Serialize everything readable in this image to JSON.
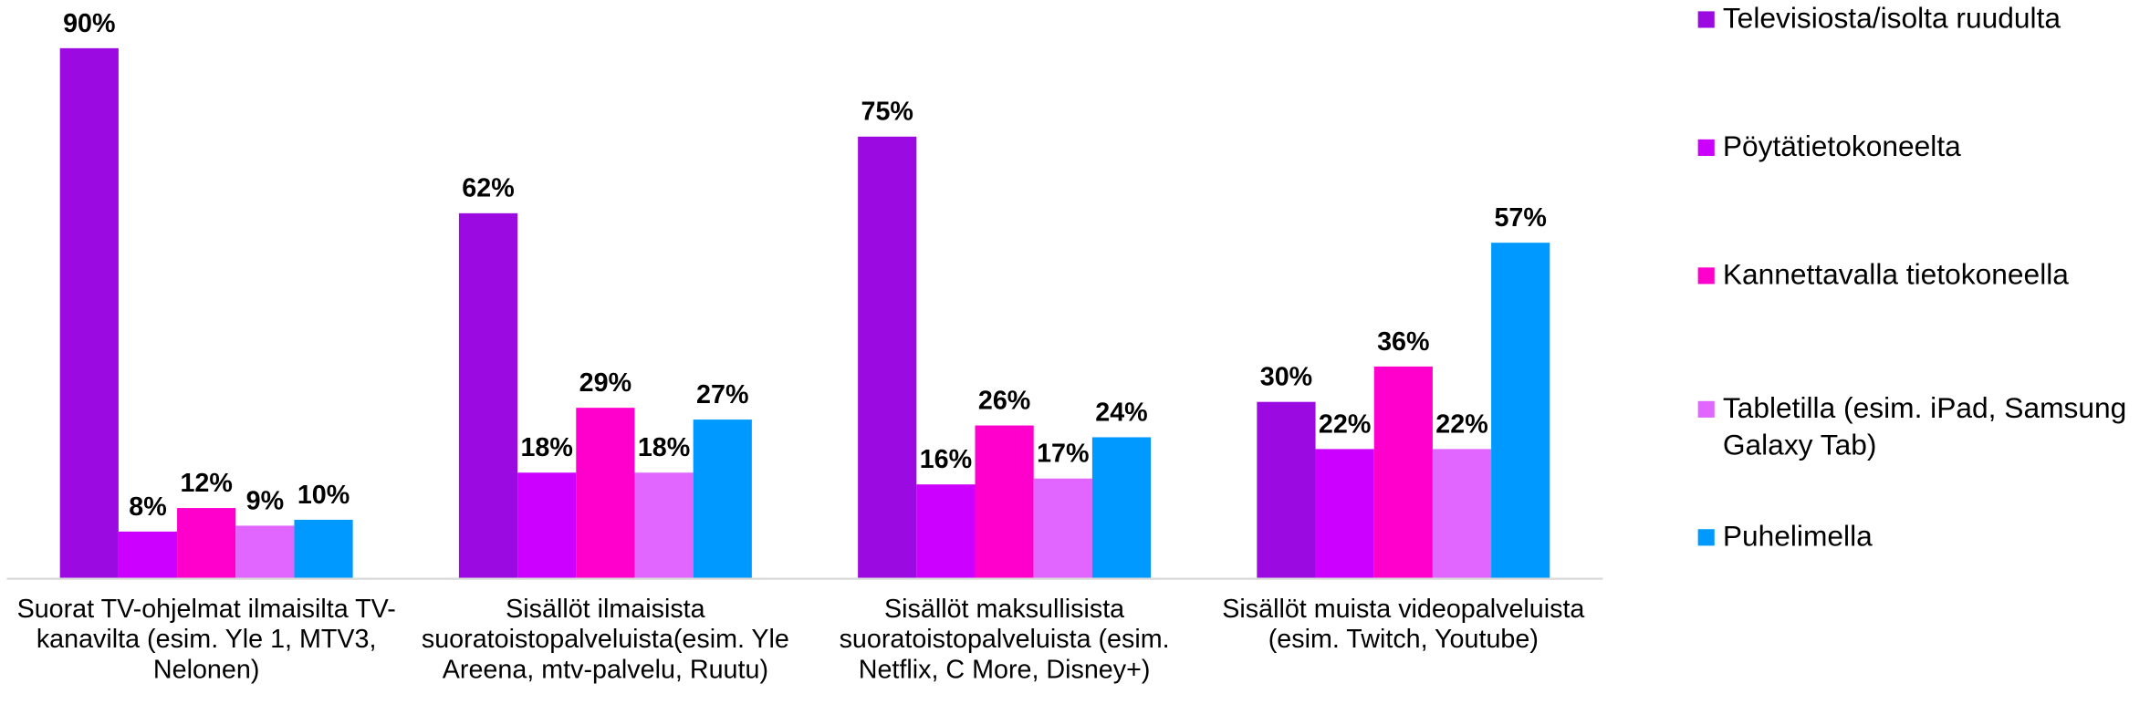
{
  "chart_data": {
    "type": "bar",
    "categories": [
      "Suorat TV-ohjelmat ilmaisilta TV-kanavilta (esim. Yle 1, MTV3, Nelonen)",
      "Sisällöt ilmaisista suoratoistopalveluista(esim. Yle Areena, mtv-palvelu, Ruutu)",
      "Sisällöt maksullisista suoratoistopalveluista (esim. Netflix, C More, Disney+)",
      "Sisällöt muista videopalveluista (esim. Twitch, Youtube)"
    ],
    "series": [
      {
        "name": "Televisiosta/isolta ruudulta",
        "color": "#9b0ae0",
        "values": [
          90,
          62,
          75,
          30
        ],
        "value_labels": [
          "90%",
          "62%",
          "75%",
          "30%"
        ]
      },
      {
        "name": "Pöytätietokoneelta",
        "color": "#cc00ff",
        "values": [
          8,
          18,
          16,
          22
        ],
        "value_labels": [
          "8%",
          "18%",
          "16%",
          "22%"
        ]
      },
      {
        "name": "Kannettavalla tietokoneella",
        "color": "#ff00cc",
        "values": [
          12,
          29,
          26,
          36
        ],
        "value_labels": [
          "12%",
          "29%",
          "26%",
          "36%"
        ]
      },
      {
        "name": "Tabletilla (esim. iPad, Samsung Galaxy Tab)",
        "color": "#e066ff",
        "values": [
          9,
          18,
          17,
          22
        ],
        "value_labels": [
          "9%",
          "18%",
          "17%",
          "22%"
        ]
      },
      {
        "name": "Puhelimella",
        "color": "#0099ff",
        "values": [
          10,
          27,
          24,
          57
        ],
        "value_labels": [
          "10%",
          "27%",
          "24%",
          "57%"
        ]
      }
    ],
    "ylim": [
      0,
      100
    ],
    "legend": "right"
  }
}
